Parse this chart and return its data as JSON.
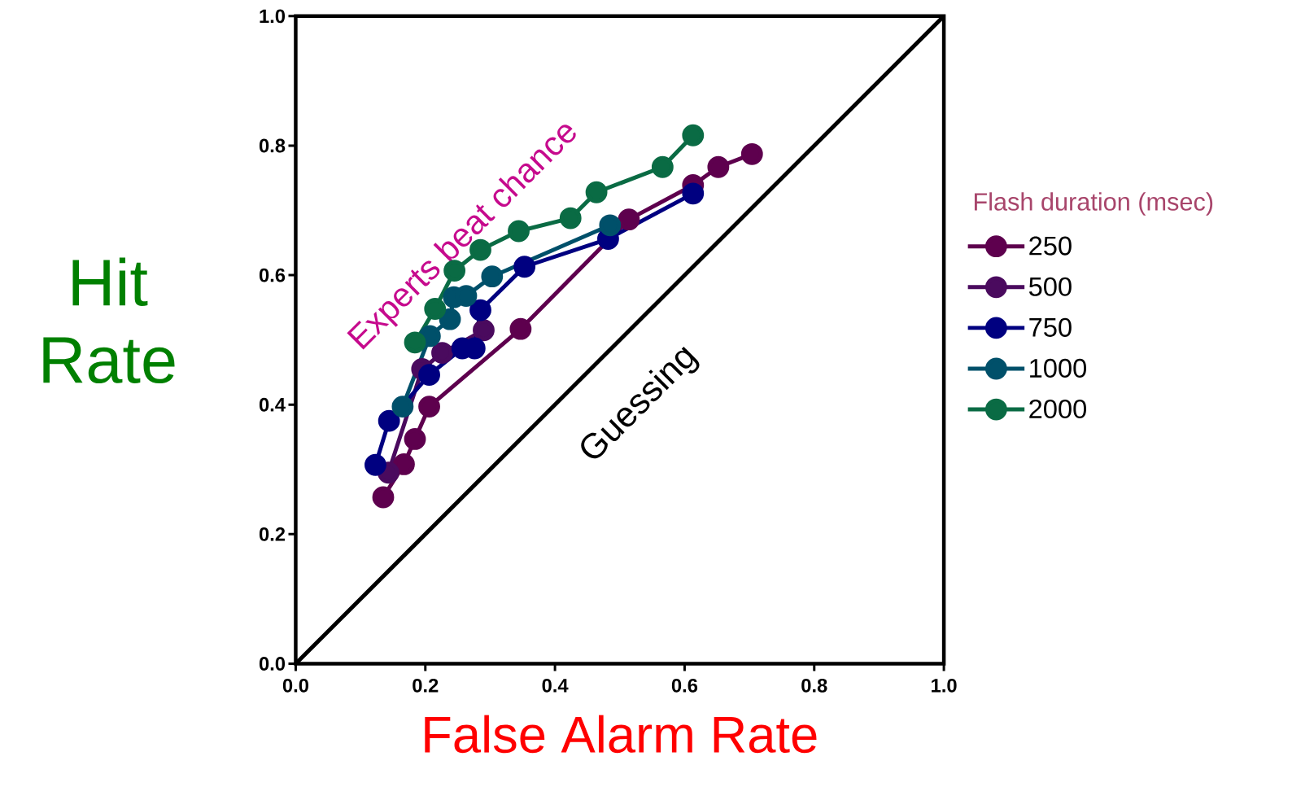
{
  "chart_data": {
    "type": "line",
    "xlabel": "False Alarm Rate",
    "ylabel": "Hit Rate",
    "legend_title": "Flash duration (msec)",
    "xlim": [
      0,
      1
    ],
    "ylim": [
      0,
      1
    ],
    "xticks": [
      {
        "value": 0,
        "label": "0.0"
      },
      0.2,
      0.4,
      0.6,
      0.8,
      {
        "value": 1,
        "label": "1.0"
      }
    ],
    "yticks": [
      {
        "value": 0,
        "label": "0.0"
      },
      0.2,
      0.4,
      0.6,
      0.8,
      {
        "value": 1,
        "label": "1.0"
      }
    ],
    "grid": false,
    "legend": "right",
    "marker": "circle",
    "line_style": "solid",
    "annotations": [
      "Experts beat chance",
      "Guessing"
    ],
    "series": [
      {
        "name": "250",
        "color": "#5e004e",
        "x": [
          0.135,
          0.167,
          0.184,
          0.206,
          0.347,
          0.514,
          0.613,
          0.652,
          0.704
        ],
        "values": [
          0.257,
          0.308,
          0.347,
          0.397,
          0.517,
          0.686,
          0.739,
          0.767,
          0.787
        ]
      },
      {
        "name": "500",
        "color": "#4a0a5e",
        "x": [
          0.143,
          0.175,
          0.195,
          0.226,
          0.29
        ],
        "values": [
          0.295,
          null,
          0.455,
          0.48,
          0.515
        ]
      },
      {
        "name": "750",
        "color": "#000080",
        "x": [
          0.123,
          0.144,
          0.206,
          0.257,
          0.276,
          0.285,
          0.353,
          0.482,
          0.613
        ],
        "values": [
          0.307,
          0.375,
          0.446,
          0.487,
          0.487,
          0.546,
          0.613,
          0.656,
          0.726
        ]
      },
      {
        "name": "1000",
        "color": "#00506a",
        "x": [
          0.165,
          0.207,
          0.238,
          0.244,
          0.263,
          0.303,
          0.485
        ],
        "values": [
          0.397,
          0.506,
          0.532,
          0.566,
          0.568,
          0.598,
          0.677
        ]
      },
      {
        "name": "2000",
        "color": "#0a6b44",
        "x": [
          0.184,
          0.215,
          0.245,
          0.285,
          0.344,
          0.424,
          0.464,
          0.566,
          0.613
        ],
        "values": [
          0.496,
          0.548,
          0.607,
          0.639,
          0.668,
          0.688,
          0.728,
          0.767,
          0.816
        ]
      },
      {
        "color": "#000000",
        "marker": "none",
        "x": [
          0,
          1
        ],
        "values": [
          0,
          1
        ]
      }
    ]
  }
}
